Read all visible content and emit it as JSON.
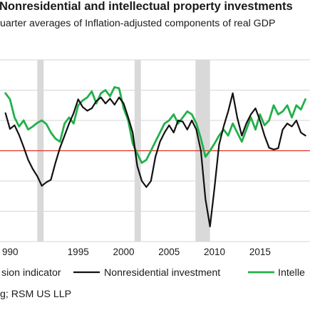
{
  "header": {
    "title": "Nonresidential and intellectual property investments",
    "subtitle": "uarter averages of Inflation-adjusted components of real GDP"
  },
  "source": "g; RSM US LLP",
  "colors": {
    "nonresidential": "#111111",
    "intellectual": "#22b04b",
    "reference_line": "#e0301e",
    "recession": "#d9d9d9"
  },
  "chart_data": {
    "type": "line",
    "title": "Nonresidential and intellectual property investments",
    "subtitle": "uarter averages of Inflation-adjusted components of real GDP",
    "xlabel": "",
    "ylabel": "",
    "x_ticks": [
      "990",
      "1995",
      "2000",
      "2005",
      "2010",
      "2015"
    ],
    "xlim": [
      1986.4,
      2020.5
    ],
    "ylim": [
      -15,
      15
    ],
    "reference_line": 0,
    "grid": "horizontal",
    "recessions": [
      [
        1990.5,
        1991.2
      ],
      [
        2001.2,
        2001.9
      ],
      [
        2007.9,
        2009.5
      ]
    ],
    "legend": [
      {
        "label": "sion indicator",
        "type": "recession"
      },
      {
        "label": "Nonresidential investment",
        "type": "line",
        "series": "nonresidential"
      },
      {
        "label": "Intelle",
        "type": "line",
        "series": "intellectual"
      }
    ],
    "legend_position": "bottom",
    "series": [
      {
        "key": "nonresidential",
        "name": "Nonresidential investment",
        "points": [
          [
            1987.0,
            6.2
          ],
          [
            1987.5,
            3.6
          ],
          [
            1988.0,
            4.2
          ],
          [
            1988.5,
            2.6
          ],
          [
            1989.0,
            0.6
          ],
          [
            1989.5,
            -1.5
          ],
          [
            1990.0,
            -3.0
          ],
          [
            1990.5,
            -4.2
          ],
          [
            1991.0,
            -5.8
          ],
          [
            1991.5,
            -5.2
          ],
          [
            1992.0,
            -4.8
          ],
          [
            1992.5,
            -2.0
          ],
          [
            1993.0,
            0.5
          ],
          [
            1993.5,
            2.5
          ],
          [
            1994.0,
            4.5
          ],
          [
            1994.5,
            6.2
          ],
          [
            1995.0,
            8.5
          ],
          [
            1995.5,
            7.2
          ],
          [
            1996.0,
            6.6
          ],
          [
            1996.5,
            7.0
          ],
          [
            1997.0,
            8.2
          ],
          [
            1997.5,
            8.8
          ],
          [
            1998.0,
            7.8
          ],
          [
            1998.5,
            8.6
          ],
          [
            1999.0,
            7.6
          ],
          [
            1999.5,
            8.8
          ],
          [
            2000.0,
            7.8
          ],
          [
            2000.5,
            5.5
          ],
          [
            2001.0,
            3.0
          ],
          [
            2001.5,
            -2.5
          ],
          [
            2002.0,
            -5.0
          ],
          [
            2002.5,
            -6.0
          ],
          [
            2003.0,
            -5.0
          ],
          [
            2003.5,
            -1.0
          ],
          [
            2004.0,
            1.5
          ],
          [
            2004.5,
            3.0
          ],
          [
            2005.0,
            4.2
          ],
          [
            2005.5,
            3.0
          ],
          [
            2006.0,
            5.0
          ],
          [
            2006.5,
            4.8
          ],
          [
            2007.0,
            3.5
          ],
          [
            2007.5,
            5.0
          ],
          [
            2008.0,
            3.5
          ],
          [
            2008.5,
            0.0
          ],
          [
            2009.0,
            -8.0
          ],
          [
            2009.5,
            -12.5
          ],
          [
            2010.0,
            -6.0
          ],
          [
            2010.5,
            1.0
          ],
          [
            2011.0,
            4.0
          ],
          [
            2011.5,
            6.5
          ],
          [
            2012.0,
            9.5
          ],
          [
            2012.5,
            5.5
          ],
          [
            2013.0,
            2.5
          ],
          [
            2013.5,
            4.5
          ],
          [
            2014.0,
            6.0
          ],
          [
            2014.5,
            7.0
          ],
          [
            2015.0,
            5.0
          ],
          [
            2015.5,
            2.5
          ],
          [
            2016.0,
            0.5
          ],
          [
            2016.5,
            0.2
          ],
          [
            2017.0,
            0.4
          ],
          [
            2017.5,
            3.5
          ],
          [
            2018.0,
            4.5
          ],
          [
            2018.5,
            4.0
          ],
          [
            2019.0,
            5.0
          ],
          [
            2019.5,
            3.0
          ],
          [
            2020.0,
            2.5
          ]
        ]
      },
      {
        "key": "intellectual",
        "name": "Intellectual property investment",
        "points": [
          [
            1987.0,
            9.5
          ],
          [
            1987.5,
            8.5
          ],
          [
            1988.0,
            5.5
          ],
          [
            1988.5,
            4.0
          ],
          [
            1989.0,
            5.0
          ],
          [
            1989.5,
            3.5
          ],
          [
            1990.0,
            4.0
          ],
          [
            1990.5,
            4.6
          ],
          [
            1991.0,
            5.0
          ],
          [
            1991.5,
            4.4
          ],
          [
            1992.0,
            3.0
          ],
          [
            1992.5,
            2.0
          ],
          [
            1993.0,
            1.5
          ],
          [
            1993.5,
            4.5
          ],
          [
            1994.0,
            5.5
          ],
          [
            1994.5,
            4.5
          ],
          [
            1995.0,
            7.5
          ],
          [
            1995.5,
            8.3
          ],
          [
            1996.0,
            8.8
          ],
          [
            1996.5,
            9.8
          ],
          [
            1997.0,
            7.8
          ],
          [
            1997.5,
            9.5
          ],
          [
            1998.0,
            10.0
          ],
          [
            1998.5,
            9.0
          ],
          [
            1999.0,
            10.5
          ],
          [
            1999.5,
            10.3
          ],
          [
            2000.0,
            7.0
          ],
          [
            2000.5,
            5.0
          ],
          [
            2001.0,
            1.2
          ],
          [
            2001.5,
            -0.5
          ],
          [
            2002.0,
            -2.0
          ],
          [
            2002.5,
            -1.5
          ],
          [
            2003.0,
            0.0
          ],
          [
            2003.5,
            1.5
          ],
          [
            2004.0,
            3.0
          ],
          [
            2004.5,
            4.5
          ],
          [
            2005.0,
            5.0
          ],
          [
            2005.5,
            6.0
          ],
          [
            2006.0,
            4.5
          ],
          [
            2006.5,
            5.5
          ],
          [
            2007.0,
            6.5
          ],
          [
            2007.5,
            6.0
          ],
          [
            2008.0,
            4.5
          ],
          [
            2008.5,
            2.0
          ],
          [
            2009.0,
            -1.0
          ],
          [
            2009.5,
            0.0
          ],
          [
            2010.0,
            1.2
          ],
          [
            2010.5,
            2.5
          ],
          [
            2011.0,
            3.5
          ],
          [
            2011.5,
            2.5
          ],
          [
            2012.0,
            4.5
          ],
          [
            2012.5,
            3.0
          ],
          [
            2013.0,
            1.5
          ],
          [
            2013.5,
            3.5
          ],
          [
            2014.0,
            5.5
          ],
          [
            2014.5,
            3.5
          ],
          [
            2015.0,
            6.0
          ],
          [
            2015.5,
            4.2
          ],
          [
            2016.0,
            5.0
          ],
          [
            2016.5,
            7.5
          ],
          [
            2017.0,
            6.0
          ],
          [
            2017.5,
            6.5
          ],
          [
            2018.0,
            7.5
          ],
          [
            2018.5,
            5.5
          ],
          [
            2019.0,
            7.5
          ],
          [
            2019.5,
            6.8
          ],
          [
            2020.0,
            8.5
          ]
        ]
      }
    ]
  }
}
